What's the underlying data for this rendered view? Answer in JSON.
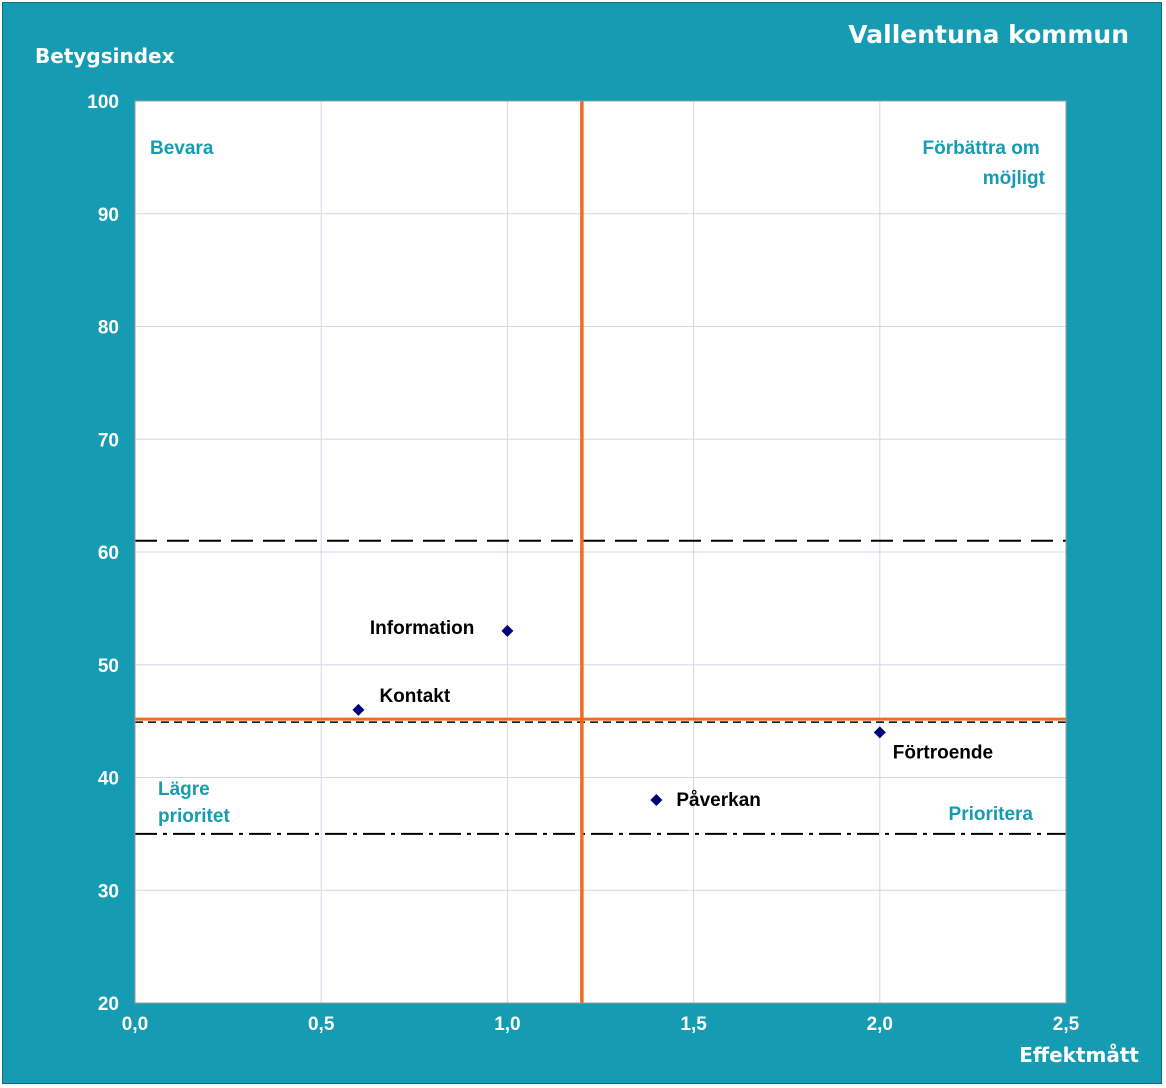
{
  "chart_data": {
    "type": "scatter",
    "title": "Vallentuna kommun",
    "xlabel": "Effektmått",
    "ylabel": "Betygsindex",
    "xlim": [
      0,
      2.5
    ],
    "ylim": [
      20,
      100
    ],
    "x_ticks": [
      "0,0",
      "0,5",
      "1,0",
      "1,5",
      "2,0",
      "2,5"
    ],
    "y_ticks": [
      "20",
      "30",
      "40",
      "50",
      "60",
      "70",
      "80",
      "90",
      "100"
    ],
    "grid": true,
    "points": [
      {
        "label": "Information",
        "x": 1.0,
        "y": 53
      },
      {
        "label": "Kontakt",
        "x": 0.6,
        "y": 46
      },
      {
        "label": "Förtroende",
        "x": 2.0,
        "y": 44
      },
      {
        "label": "Påverkan",
        "x": 1.4,
        "y": 38
      }
    ],
    "reference_lines": {
      "vertical_mean_x": 1.2,
      "horizontal_mean_y": 45,
      "upper_dashed_y": 61,
      "lower_dashdot_y": 35
    },
    "quadrants": {
      "top_left": [
        "Bevara"
      ],
      "top_right": [
        "Förbättra om",
        "möjligt"
      ],
      "bottom_left": [
        "Lägre",
        "prioritet"
      ],
      "bottom_right": [
        "Prioritera"
      ]
    },
    "colors": {
      "frame": "#159cb2",
      "plot_bg": "#ffffff",
      "grid": "#d6d6ea",
      "mean_line": "#f26b1d",
      "marker": "#00007a",
      "quadrant_text": "#159cb2"
    }
  }
}
